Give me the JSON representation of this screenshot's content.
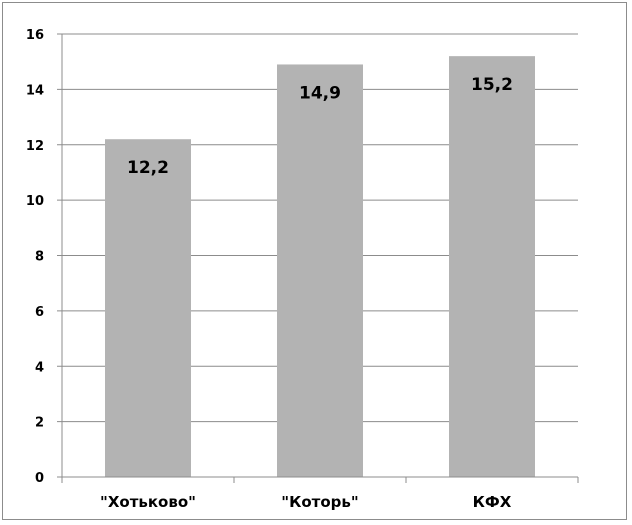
{
  "chart_data": {
    "type": "bar",
    "categories": [
      "\"Хотьково\"",
      "\"Которь\"",
      "КФХ"
    ],
    "values": [
      12.2,
      14.9,
      15.2
    ],
    "data_labels": [
      "12,2",
      "14,9",
      "15,2"
    ],
    "ylim": [
      0,
      16
    ],
    "yticks": [
      0,
      2,
      4,
      6,
      8,
      10,
      12,
      14,
      16
    ],
    "grid": true,
    "legend": "none",
    "bar_color": "#b3b3b3",
    "gridline_color": "#8c8c8c"
  }
}
